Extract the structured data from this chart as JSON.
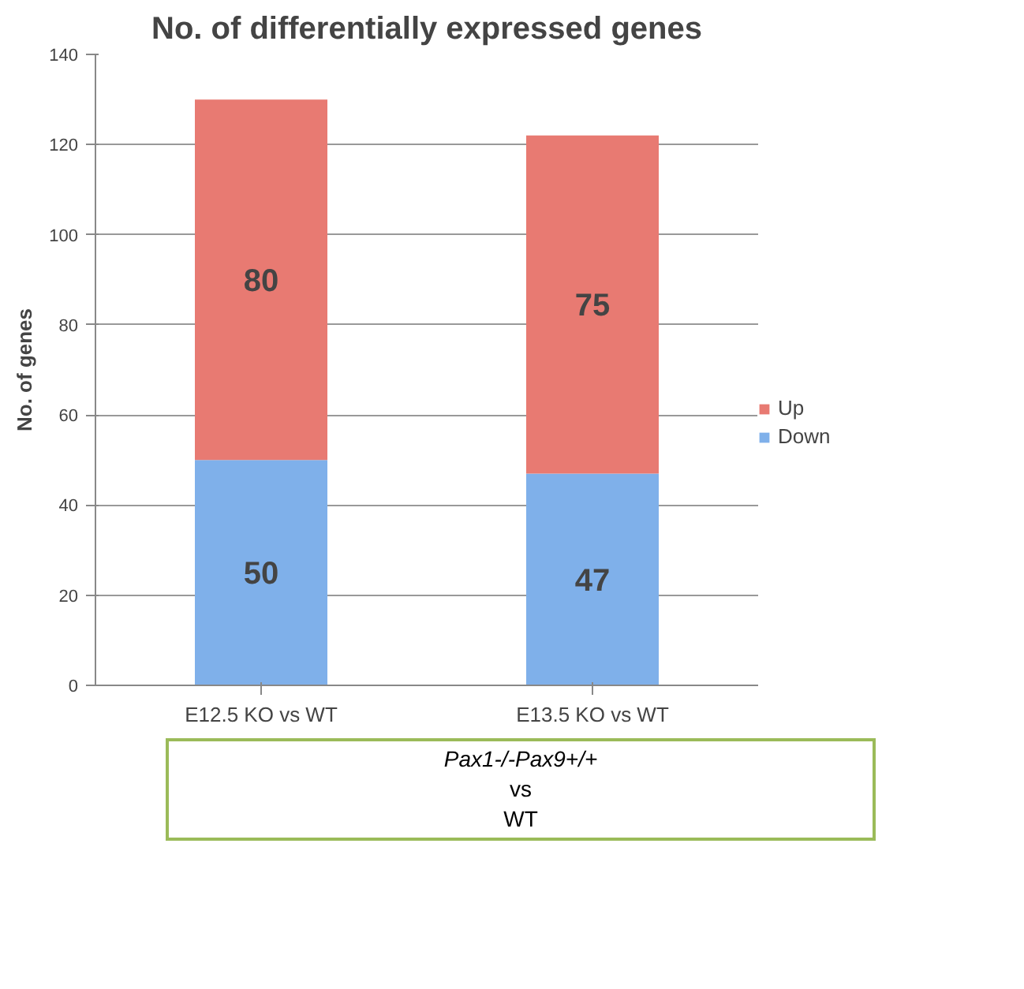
{
  "chart_data": {
    "type": "bar",
    "stacked": true,
    "title": "No. of differentially expressed genes",
    "ylabel": "No. of genes",
    "categories": [
      "E12.5 KO vs WT",
      "E13.5 KO vs WT"
    ],
    "series": [
      {
        "name": "Down",
        "color": "#7fb0ea",
        "values": [
          50,
          47
        ]
      },
      {
        "name": "Up",
        "color": "#e87a72",
        "values": [
          80,
          75
        ]
      }
    ],
    "ylim": [
      0,
      140
    ],
    "yticks": [
      0,
      20,
      40,
      60,
      80,
      100,
      120,
      140
    ],
    "grid": "y",
    "legend": "right",
    "data_labels": true,
    "annotations": [
      "Pax1-/-Pax9+/+",
      "vs",
      "WT"
    ]
  }
}
